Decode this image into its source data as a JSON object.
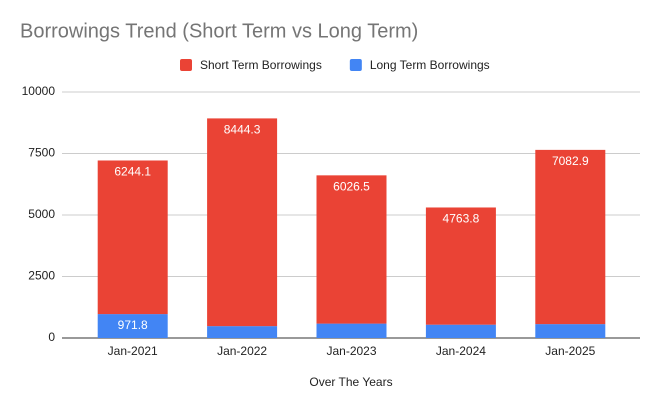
{
  "chart_data": {
    "type": "stacked_bar",
    "title": "Borrowings Trend (Short Term vs Long Term)",
    "x_label": "Over The Years",
    "categories": [
      "Jan-2021",
      "Jan-2022",
      "Jan-2023",
      "Jan-2024",
      "Jan-2025"
    ],
    "series": [
      {
        "name": "Long Term Borrowings",
        "color": "#4285f4",
        "values": [
          971.8,
          482.6,
          585.4,
          541.9,
          564.4
        ]
      },
      {
        "name": "Short Term Borrowings",
        "color": "#ea4335",
        "values": [
          6244.1,
          8444.3,
          6026.5,
          4763.8,
          7082.9
        ]
      }
    ],
    "legend_order": [
      1,
      0
    ],
    "ylim": [
      0,
      10000
    ],
    "yticks": [
      0,
      2500,
      5000,
      7500,
      10000
    ],
    "grid": true,
    "legend": "top"
  }
}
